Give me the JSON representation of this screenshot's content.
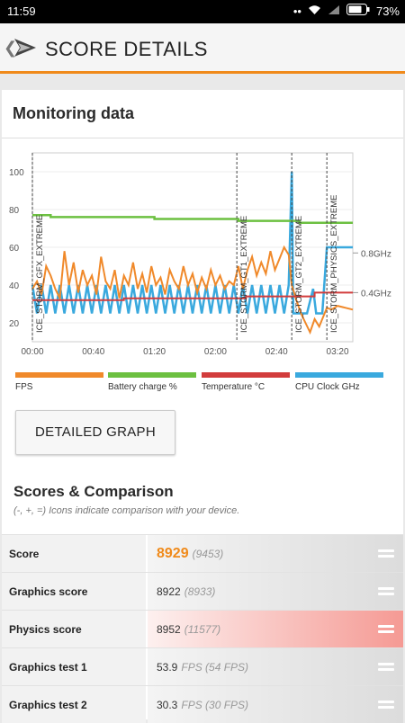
{
  "status_bar": {
    "time": "11:59",
    "battery": "73%",
    "icons": [
      "wifi-icon",
      "signal-icon",
      "battery-icon"
    ]
  },
  "app_bar": {
    "title": "SCORE DETAILS",
    "back_icon": "chevron-left-icon",
    "logo_icon": "3dmark-logo-icon"
  },
  "monitoring": {
    "title": "Monitoring data"
  },
  "chart_data": {
    "type": "line",
    "x_ticks": [
      "00:00",
      "00:40",
      "01:20",
      "02:00",
      "02:40",
      "03:20"
    ],
    "y_ticks": [
      20,
      40,
      60,
      80,
      100
    ],
    "ylim": [
      10,
      110
    ],
    "right_ticks": [
      "0.8GHz",
      "0.4GHz"
    ],
    "sections": [
      {
        "label": "ICE_STORM_GFX_EXTREME",
        "t": 0
      },
      {
        "label": "ICE_STORM_GT1_EXTREME",
        "t": 134
      },
      {
        "label": "ICE_STORM_GT2_EXTREME",
        "t": 170
      },
      {
        "label": "ICE_STORM_PHYSICS_EXTREME",
        "t": 193
      }
    ],
    "xlim": [
      0,
      210
    ],
    "series": [
      {
        "name": "FPS",
        "color": "#f0892a"
      },
      {
        "name": "Battery charge %",
        "color": "#6cc040"
      },
      {
        "name": "Temperature °C",
        "color": "#d23c3c"
      },
      {
        "name": "CPU Clock GHz",
        "color": "#3aa9de"
      }
    ],
    "battery": [
      [
        0,
        77
      ],
      [
        12,
        77
      ],
      [
        12,
        76
      ],
      [
        80,
        76
      ],
      [
        80,
        75
      ],
      [
        135,
        75
      ],
      [
        135,
        74
      ],
      [
        175,
        74
      ],
      [
        175,
        73
      ],
      [
        210,
        73
      ]
    ],
    "temperature": [
      [
        0,
        32
      ],
      [
        60,
        32
      ],
      [
        60,
        33
      ],
      [
        140,
        33
      ],
      [
        140,
        34
      ],
      [
        185,
        34
      ],
      [
        185,
        36
      ],
      [
        210,
        36
      ]
    ],
    "fps": [
      [
        0,
        38
      ],
      [
        3,
        42
      ],
      [
        6,
        35
      ],
      [
        9,
        50
      ],
      [
        12,
        45
      ],
      [
        15,
        38
      ],
      [
        18,
        33
      ],
      [
        21,
        58
      ],
      [
        24,
        40
      ],
      [
        27,
        52
      ],
      [
        30,
        36
      ],
      [
        33,
        48
      ],
      [
        36,
        40
      ],
      [
        39,
        45
      ],
      [
        42,
        35
      ],
      [
        45,
        55
      ],
      [
        48,
        42
      ],
      [
        51,
        38
      ],
      [
        54,
        48
      ],
      [
        57,
        33
      ],
      [
        60,
        45
      ],
      [
        63,
        40
      ],
      [
        66,
        52
      ],
      [
        69,
        38
      ],
      [
        72,
        46
      ],
      [
        75,
        36
      ],
      [
        78,
        50
      ],
      [
        81,
        40
      ],
      [
        84,
        44
      ],
      [
        87,
        35
      ],
      [
        90,
        48
      ],
      [
        93,
        42
      ],
      [
        96,
        38
      ],
      [
        99,
        50
      ],
      [
        102,
        40
      ],
      [
        105,
        46
      ],
      [
        108,
        36
      ],
      [
        111,
        44
      ],
      [
        114,
        38
      ],
      [
        117,
        48
      ],
      [
        120,
        40
      ],
      [
        123,
        45
      ],
      [
        126,
        38
      ],
      [
        129,
        42
      ],
      [
        132,
        40
      ],
      [
        135,
        50
      ],
      [
        138,
        38
      ],
      [
        141,
        48
      ],
      [
        144,
        55
      ],
      [
        147,
        45
      ],
      [
        150,
        52
      ],
      [
        153,
        46
      ],
      [
        156,
        58
      ],
      [
        159,
        48
      ],
      [
        162,
        54
      ],
      [
        165,
        60
      ],
      [
        168,
        56
      ],
      [
        170,
        40
      ],
      [
        173,
        32
      ],
      [
        176,
        25
      ],
      [
        179,
        20
      ],
      [
        182,
        15
      ],
      [
        185,
        22
      ],
      [
        188,
        18
      ],
      [
        191,
        24
      ],
      [
        193,
        28
      ],
      [
        196,
        27
      ],
      [
        200,
        29
      ],
      [
        205,
        28
      ],
      [
        210,
        27
      ]
    ],
    "cpu": [
      [
        0,
        40
      ],
      [
        3,
        25
      ],
      [
        6,
        40
      ],
      [
        9,
        25
      ],
      [
        12,
        40
      ],
      [
        15,
        25
      ],
      [
        18,
        40
      ],
      [
        21,
        25
      ],
      [
        24,
        40
      ],
      [
        27,
        25
      ],
      [
        30,
        40
      ],
      [
        33,
        25
      ],
      [
        36,
        40
      ],
      [
        39,
        25
      ],
      [
        42,
        40
      ],
      [
        45,
        25
      ],
      [
        48,
        40
      ],
      [
        51,
        25
      ],
      [
        54,
        40
      ],
      [
        57,
        25
      ],
      [
        60,
        40
      ],
      [
        63,
        25
      ],
      [
        66,
        40
      ],
      [
        69,
        25
      ],
      [
        72,
        40
      ],
      [
        75,
        25
      ],
      [
        78,
        40
      ],
      [
        81,
        25
      ],
      [
        84,
        40
      ],
      [
        87,
        25
      ],
      [
        90,
        40
      ],
      [
        93,
        25
      ],
      [
        96,
        40
      ],
      [
        99,
        25
      ],
      [
        102,
        40
      ],
      [
        105,
        25
      ],
      [
        108,
        40
      ],
      [
        111,
        25
      ],
      [
        114,
        40
      ],
      [
        117,
        25
      ],
      [
        120,
        40
      ],
      [
        123,
        25
      ],
      [
        126,
        40
      ],
      [
        129,
        25
      ],
      [
        132,
        40
      ],
      [
        135,
        25
      ],
      [
        138,
        40
      ],
      [
        141,
        25
      ],
      [
        144,
        40
      ],
      [
        147,
        25
      ],
      [
        150,
        40
      ],
      [
        153,
        25
      ],
      [
        156,
        40
      ],
      [
        159,
        25
      ],
      [
        162,
        40
      ],
      [
        165,
        25
      ],
      [
        168,
        40
      ],
      [
        170,
        100
      ],
      [
        171,
        25
      ],
      [
        175,
        25
      ],
      [
        180,
        25
      ],
      [
        184,
        38
      ],
      [
        186,
        25
      ],
      [
        190,
        25
      ],
      [
        193,
        60
      ],
      [
        200,
        60
      ],
      [
        210,
        60
      ]
    ]
  },
  "legend": [
    {
      "label": "FPS",
      "color": "#f0892a"
    },
    {
      "label": "Battery charge %",
      "color": "#6cc040"
    },
    {
      "label": "Temperature °C",
      "color": "#d23c3c"
    },
    {
      "label": "CPU Clock GHz",
      "color": "#3aa9de"
    }
  ],
  "detailed_graph_label": "DETAILED GRAPH",
  "scores": {
    "title": "Scores & Comparison",
    "subtitle": "(-, +, =) Icons indicate comparison with your device.",
    "rows": [
      {
        "label": "Score",
        "value": "8929",
        "compare": "(9453)",
        "highlight": false,
        "big": true
      },
      {
        "label": "Graphics score",
        "value": "8922",
        "compare": "(8933)",
        "highlight": false,
        "big": false
      },
      {
        "label": "Physics score",
        "value": "8952",
        "compare": "(11577)",
        "highlight": true,
        "big": false
      },
      {
        "label": "Graphics test 1",
        "value": "53.9",
        "compare": "FPS (54 FPS)",
        "highlight": false,
        "big": false
      },
      {
        "label": "Graphics test 2",
        "value": "30.3",
        "compare": "FPS (30 FPS)",
        "highlight": false,
        "big": false
      }
    ]
  }
}
